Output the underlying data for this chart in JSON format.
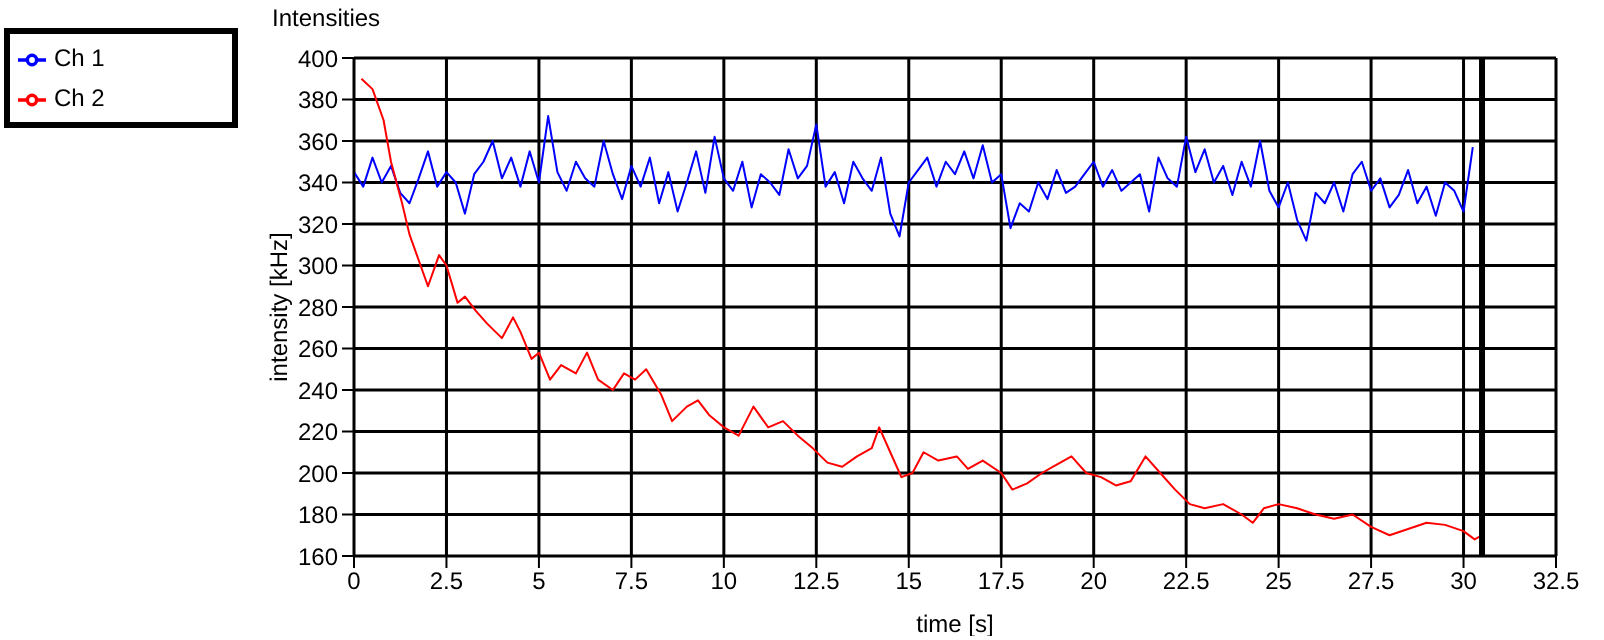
{
  "chart_data": {
    "type": "line",
    "title": "Intensities",
    "xlabel": "time [s]",
    "ylabel": "intensity [kHz]",
    "xlim": [
      0,
      32.5
    ],
    "xticks": [
      0,
      2.5,
      5,
      7.5,
      10,
      12.5,
      15,
      17.5,
      20,
      22.5,
      25,
      27.5,
      30,
      32.5
    ],
    "ylim": [
      160,
      400
    ],
    "yticks": [
      160,
      180,
      200,
      220,
      240,
      260,
      280,
      300,
      320,
      340,
      360,
      380,
      400
    ],
    "grid": true,
    "legend": "top left",
    "ref_lines": [
      {
        "axis": "x",
        "value": 30.5,
        "color": "#000000"
      }
    ],
    "series": [
      {
        "name": "Ch 1",
        "color": "#0000ff",
        "x": [
          0,
          0.25,
          0.5,
          0.75,
          1,
          1.25,
          1.5,
          1.75,
          2,
          2.25,
          2.5,
          2.75,
          3,
          3.25,
          3.5,
          3.75,
          4,
          4.25,
          4.5,
          4.75,
          5,
          5.25,
          5.5,
          5.75,
          6,
          6.25,
          6.5,
          6.75,
          7,
          7.25,
          7.5,
          7.75,
          8,
          8.25,
          8.5,
          8.75,
          9,
          9.25,
          9.5,
          9.75,
          10,
          10.25,
          10.5,
          10.75,
          11,
          11.25,
          11.5,
          11.75,
          12,
          12.25,
          12.5,
          12.75,
          13,
          13.25,
          13.5,
          13.75,
          14,
          14.25,
          14.5,
          14.75,
          15,
          15.25,
          15.5,
          15.75,
          16,
          16.25,
          16.5,
          16.75,
          17,
          17.25,
          17.5,
          17.75,
          18,
          18.25,
          18.5,
          18.75,
          19,
          19.25,
          19.5,
          19.75,
          20,
          20.25,
          20.5,
          20.75,
          21,
          21.25,
          21.5,
          21.75,
          22,
          22.25,
          22.5,
          22.75,
          23,
          23.25,
          23.5,
          23.75,
          24,
          24.25,
          24.5,
          24.75,
          25,
          25.25,
          25.5,
          25.75,
          26,
          26.25,
          26.5,
          26.75,
          27,
          27.25,
          27.5,
          27.75,
          28,
          28.25,
          28.5,
          28.75,
          29,
          29.25,
          29.5,
          29.75,
          30,
          30.25
        ],
        "values": [
          345,
          338,
          352,
          340,
          348,
          335,
          330,
          342,
          355,
          338,
          345,
          340,
          325,
          344,
          350,
          360,
          342,
          352,
          338,
          355,
          340,
          372,
          345,
          336,
          350,
          342,
          338,
          360,
          344,
          332,
          348,
          338,
          352,
          330,
          345,
          326,
          340,
          355,
          335,
          362,
          342,
          336,
          350,
          328,
          344,
          340,
          334,
          356,
          342,
          348,
          368,
          338,
          345,
          330,
          350,
          342,
          336,
          352,
          325,
          314,
          340,
          346,
          352,
          338,
          350,
          344,
          355,
          342,
          358,
          340,
          344,
          318,
          330,
          326,
          340,
          332,
          346,
          335,
          338,
          344,
          350,
          338,
          346,
          336,
          340,
          344,
          326,
          352,
          342,
          338,
          362,
          345,
          356,
          340,
          348,
          334,
          350,
          338,
          360,
          336,
          328,
          340,
          322,
          312,
          335,
          330,
          340,
          326,
          344,
          350,
          336,
          342,
          328,
          334,
          346,
          330,
          338,
          324,
          340,
          336,
          326,
          357
        ]
      },
      {
        "name": "Ch 2",
        "color": "#ff0000",
        "x": [
          0.2,
          0.5,
          0.8,
          1,
          1.3,
          1.5,
          1.8,
          2,
          2.3,
          2.5,
          2.8,
          3,
          3.3,
          3.6,
          4,
          4.3,
          4.5,
          4.8,
          5,
          5.3,
          5.6,
          6,
          6.3,
          6.6,
          7,
          7.3,
          7.6,
          7.9,
          8.3,
          8.6,
          9,
          9.3,
          9.6,
          10,
          10.4,
          10.8,
          11.2,
          11.6,
          12,
          12.4,
          12.8,
          13.2,
          13.6,
          14,
          14.2,
          14.5,
          14.8,
          15.1,
          15.4,
          15.8,
          16.3,
          16.6,
          17,
          17.5,
          17.8,
          18.2,
          18.6,
          19,
          19.4,
          19.8,
          20.2,
          20.6,
          21,
          21.4,
          21.8,
          22.2,
          22.6,
          23,
          23.5,
          24,
          24.3,
          24.6,
          25,
          25.5,
          26,
          26.5,
          27,
          27.5,
          28,
          28.5,
          29,
          29.5,
          30,
          30.3,
          30.5
        ],
        "values": [
          390,
          385,
          370,
          350,
          330,
          315,
          300,
          290,
          305,
          300,
          282,
          285,
          278,
          272,
          265,
          275,
          268,
          255,
          258,
          245,
          252,
          248,
          258,
          245,
          240,
          248,
          245,
          250,
          238,
          225,
          232,
          235,
          228,
          222,
          218,
          232,
          222,
          225,
          218,
          212,
          205,
          203,
          208,
          212,
          222,
          210,
          198,
          200,
          210,
          206,
          208,
          202,
          206,
          200,
          192,
          195,
          200,
          204,
          208,
          200,
          198,
          194,
          196,
          208,
          200,
          192,
          185,
          183,
          185,
          180,
          176,
          183,
          185,
          183,
          180,
          178,
          180,
          174,
          170,
          173,
          176,
          175,
          172,
          168,
          170
        ]
      }
    ]
  }
}
